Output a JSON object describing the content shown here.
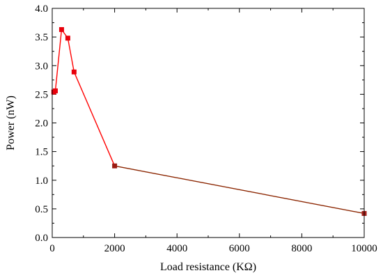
{
  "chart_data": {
    "type": "line",
    "title": "",
    "xlabel": "Load resistance (KΩ)",
    "ylabel": "Power (nW)",
    "xlim": [
      0,
      10000
    ],
    "ylim": [
      0.0,
      4.0
    ],
    "x_ticks": [
      "0",
      "2000",
      "4000",
      "6000",
      "8000",
      "10000"
    ],
    "x_tick_values": [
      0,
      2000,
      4000,
      6000,
      8000,
      10000
    ],
    "y_ticks": [
      "0.0",
      "0.5",
      "1.0",
      "1.5",
      "2.0",
      "2.5",
      "3.0",
      "3.5",
      "4.0"
    ],
    "y_tick_values": [
      0.0,
      0.5,
      1.0,
      1.5,
      2.0,
      2.5,
      3.0,
      3.5,
      4.0
    ],
    "grid": false,
    "series": [
      {
        "x": [
          50,
          100,
          300,
          500,
          700,
          2000,
          10000
        ],
        "y": [
          2.54,
          2.56,
          3.63,
          3.48,
          2.89,
          1.25,
          0.42
        ],
        "colors": [
          "#e8000b",
          "#e8000b",
          "#e8000b",
          "#e8000b",
          "#e8000b",
          "#9b1a12",
          "#a3201a"
        ]
      }
    ],
    "colors": {
      "line_steep": "#ff0000",
      "line_flat": "#8b2500",
      "marker": "#e8000b"
    }
  }
}
